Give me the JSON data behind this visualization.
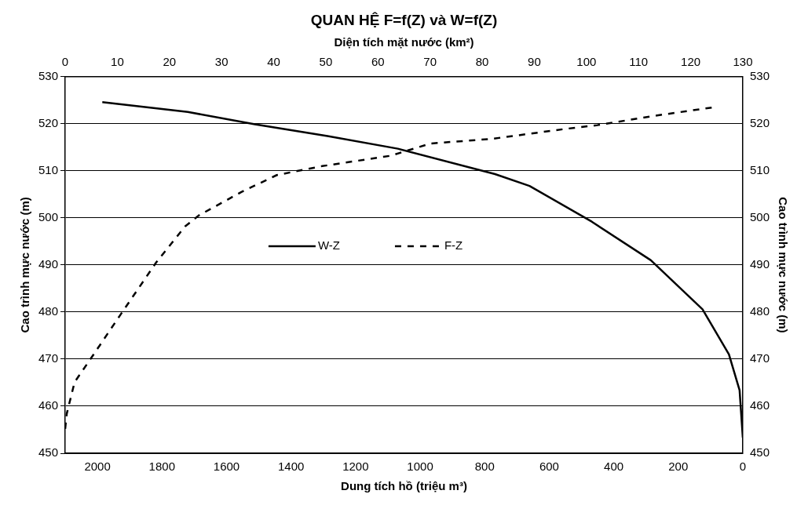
{
  "chart_data": {
    "type": "line",
    "title": "QUAN HỆ F=f(Z) và W=f(Z)",
    "xlabel": "Dung tích hồ (triệu m³)",
    "x2label": "Diện tích mặt nước (km²)",
    "ylabel": "Cao trình mực nước (m)",
    "y2label": "Cao trình mực nước (m)",
    "xlim": [
      2100,
      0
    ],
    "xticks": [
      2000,
      1800,
      1600,
      1400,
      1200,
      1000,
      800,
      600,
      400,
      200,
      0
    ],
    "x2lim": [
      0,
      130
    ],
    "x2ticks": [
      0,
      10,
      20,
      30,
      40,
      50,
      60,
      70,
      80,
      90,
      100,
      110,
      120,
      130
    ],
    "ylim": [
      450,
      530
    ],
    "yticks": [
      450,
      460,
      470,
      480,
      490,
      500,
      510,
      520,
      530
    ],
    "y2lim": [
      450,
      530
    ],
    "y2ticks": [
      450,
      460,
      470,
      480,
      490,
      500,
      510,
      520,
      530
    ],
    "grid": "y",
    "legend": "center",
    "marker": "none",
    "series": [
      {
        "name": "W-Z",
        "color": "#000000",
        "line_style": "solid",
        "x": [
          1985,
          1720,
          1512,
          1287,
          1069,
          768,
          661,
          468,
          285,
          125,
          43,
          10,
          0
        ],
        "values": [
          524.6,
          522.5,
          519.9,
          517.4,
          514.7,
          509.3,
          506.8,
          499.2,
          491.0,
          480.6,
          471.0,
          463.4,
          453.3
        ]
      },
      {
        "name": "F-Z",
        "color": "#000000",
        "line_style": "dashed",
        "axis": "x2",
        "x": [
          0,
          0.3,
          1.8,
          5.4,
          10.4,
          17.5,
          23,
          25.6,
          33.8,
          40.6,
          49.3,
          62.4,
          70.1,
          81.9,
          95.9,
          102.1,
          112.5,
          124.4
        ],
        "values": [
          455.2,
          458.4,
          465.1,
          470.9,
          479.1,
          490.6,
          498.2,
          500.5,
          505.5,
          509.1,
          511.0,
          513.2,
          515.8,
          516.8,
          518.9,
          519.7,
          521.6,
          523.5
        ]
      }
    ]
  }
}
